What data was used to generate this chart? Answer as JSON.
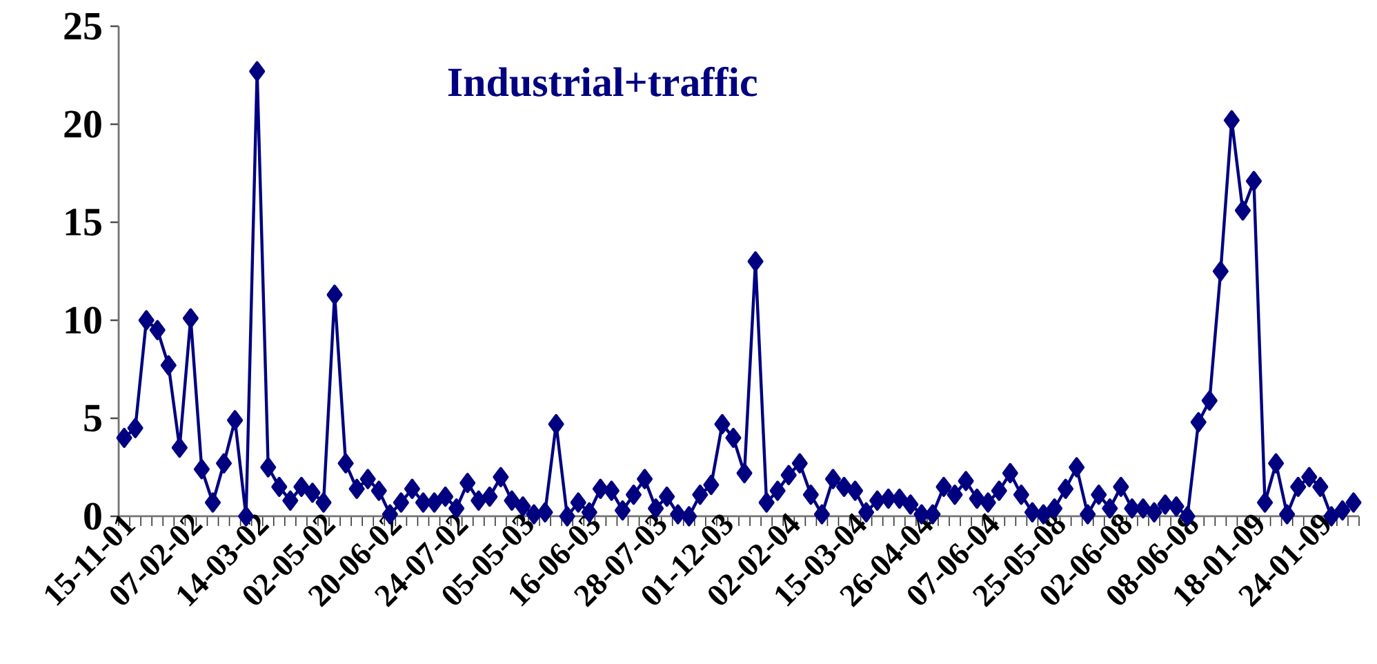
{
  "chart_data": {
    "type": "line",
    "title": "Industrial+traffic",
    "categories": [
      "15-11-01",
      null,
      null,
      null,
      null,
      null,
      "07-02-02",
      null,
      null,
      null,
      null,
      null,
      "14-03-02",
      null,
      null,
      null,
      null,
      null,
      "02-05-02",
      null,
      null,
      null,
      null,
      null,
      "20-06-02",
      null,
      null,
      null,
      null,
      null,
      "24-07-02",
      null,
      null,
      null,
      null,
      null,
      "05-05-03",
      null,
      null,
      null,
      null,
      null,
      "16-06-03",
      null,
      null,
      null,
      null,
      null,
      "28-07-03",
      null,
      null,
      null,
      null,
      null,
      "01-12-03",
      null,
      null,
      null,
      null,
      null,
      "02-02-04",
      null,
      null,
      null,
      null,
      null,
      "15-03-04",
      null,
      null,
      null,
      null,
      null,
      "26-04-04",
      null,
      null,
      null,
      null,
      null,
      "07-06-04",
      null,
      null,
      null,
      null,
      null,
      "25-05-08",
      null,
      null,
      null,
      null,
      null,
      "02-06-08",
      null,
      null,
      null,
      null,
      null,
      "08-06-08",
      null,
      null,
      null,
      null,
      null,
      "18-01-09",
      null,
      null,
      null,
      null,
      null,
      "24-01-09",
      null,
      null,
      null
    ],
    "series": [
      {
        "color": "#000080",
        "values": [
          4.0,
          4.5,
          10.0,
          9.5,
          7.7,
          3.5,
          10.1,
          2.4,
          0.7,
          2.7,
          4.9,
          0.0,
          22.7,
          2.5,
          1.5,
          0.8,
          1.5,
          1.2,
          0.7,
          11.3,
          2.7,
          1.4,
          1.9,
          1.3,
          0.1,
          0.7,
          1.4,
          0.7,
          0.7,
          1.0,
          0.4,
          1.7,
          0.8,
          1.0,
          2.0,
          0.8,
          0.5,
          0.1,
          0.2,
          4.7,
          0.0,
          0.7,
          0.2,
          1.4,
          1.3,
          0.3,
          1.1,
          1.9,
          0.4,
          1.0,
          0.1,
          0.0,
          1.1,
          1.6,
          4.7,
          4.0,
          2.2,
          13.0,
          0.7,
          1.3,
          2.1,
          2.7,
          1.1,
          0.1,
          1.9,
          1.5,
          1.3,
          0.2,
          0.8,
          0.9,
          0.9,
          0.6,
          0.1,
          0.1,
          1.5,
          1.1,
          1.8,
          0.9,
          0.7,
          1.3,
          2.2,
          1.1,
          0.2,
          0.1,
          0.4,
          1.4,
          2.5,
          0.1,
          1.1,
          0.4,
          1.5,
          0.4,
          0.4,
          0.2,
          0.6,
          0.5,
          0.0,
          4.8,
          5.9,
          12.5,
          20.2,
          15.6,
          17.1,
          0.7,
          2.7,
          0.1,
          1.5,
          2.0,
          1.5,
          0.0,
          0.3,
          0.7
        ]
      }
    ],
    "ylim": [
      0,
      25
    ],
    "yticks": [
      0,
      5,
      10,
      15,
      20,
      25
    ],
    "marker": "diamond",
    "line_style": "solid"
  }
}
